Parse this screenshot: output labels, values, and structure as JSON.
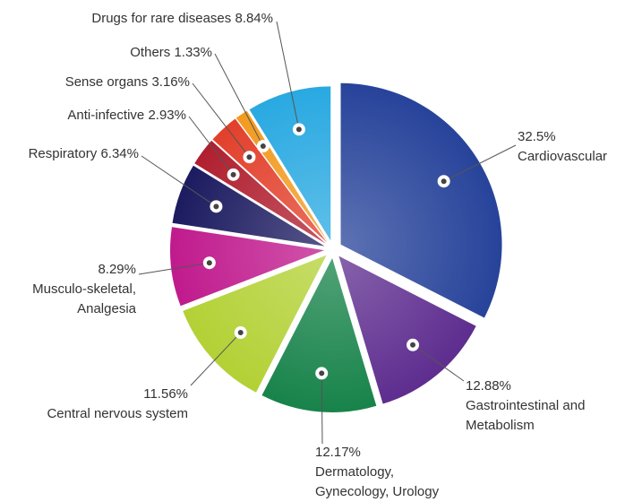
{
  "chart_data": {
    "type": "pie",
    "categories": [
      "Cardiovascular",
      "Gastrointestinal and Metabolism",
      "Dermatology, Gynecology, Urology",
      "Central nervous system",
      "Musculo-skeletal, Analgesia",
      "Respiratory",
      "Anti-infective",
      "Sense organs",
      "Others",
      "Drugs for rare diseases"
    ],
    "values": [
      32.5,
      12.88,
      12.17,
      11.56,
      8.29,
      6.34,
      2.93,
      3.16,
      1.33,
      8.84
    ],
    "value_labels": [
      "32.5%",
      "12.88%",
      "12.17%",
      "11.56%",
      "8.29%",
      "6.34%",
      "2.93%",
      "3.16%",
      "1.33%",
      "8.84%"
    ],
    "colors": [
      "#27439a",
      "#5e2d8f",
      "#17834a",
      "#b3d135",
      "#c01a8d",
      "#1c1b60",
      "#b01f2f",
      "#e2402b",
      "#f29a1f",
      "#29a9e1"
    ]
  }
}
